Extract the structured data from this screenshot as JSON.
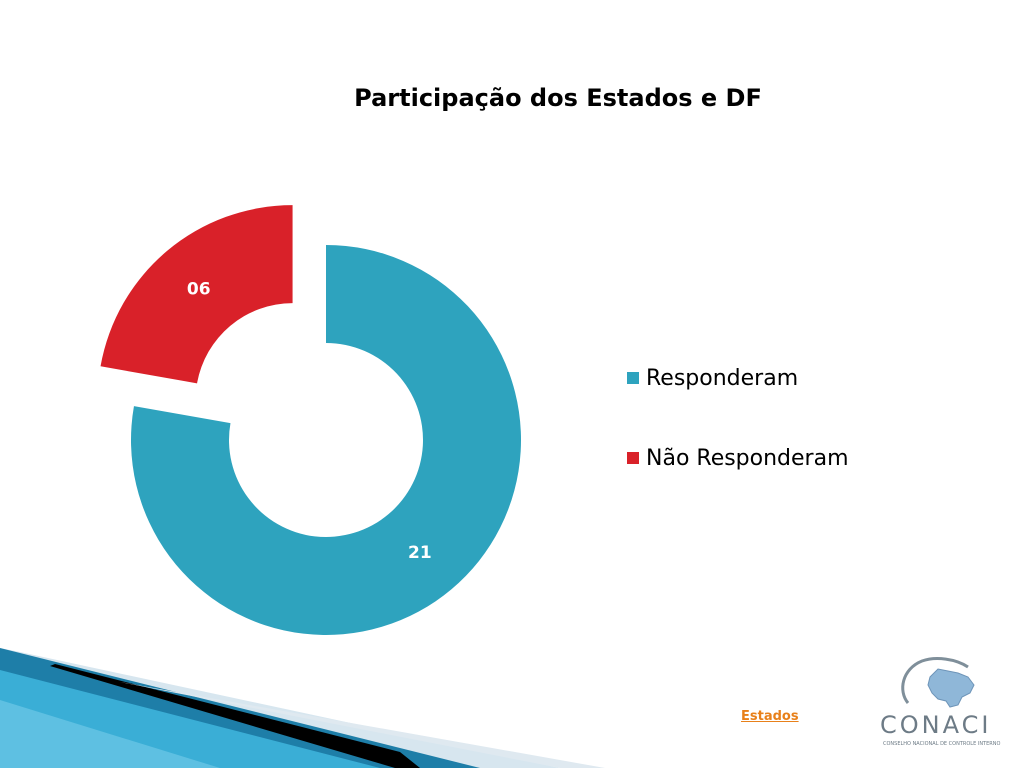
{
  "slide": {
    "footer_link": "Estados",
    "logo": {
      "name": "CONACI",
      "subtitle": "CONSELHO NACIONAL DE CONTROLE INTERNO"
    }
  },
  "chart_data": {
    "type": "pie",
    "variant": "doughnut",
    "title": "Participação dos Estados e DF",
    "categories": [
      "Responderam",
      "Não Responderam"
    ],
    "values": [
      21,
      6
    ],
    "data_labels": [
      "21",
      "06"
    ],
    "colors": [
      "#2ea3be",
      "#d92129"
    ],
    "exploded": [
      false,
      true
    ],
    "legend": "right"
  }
}
